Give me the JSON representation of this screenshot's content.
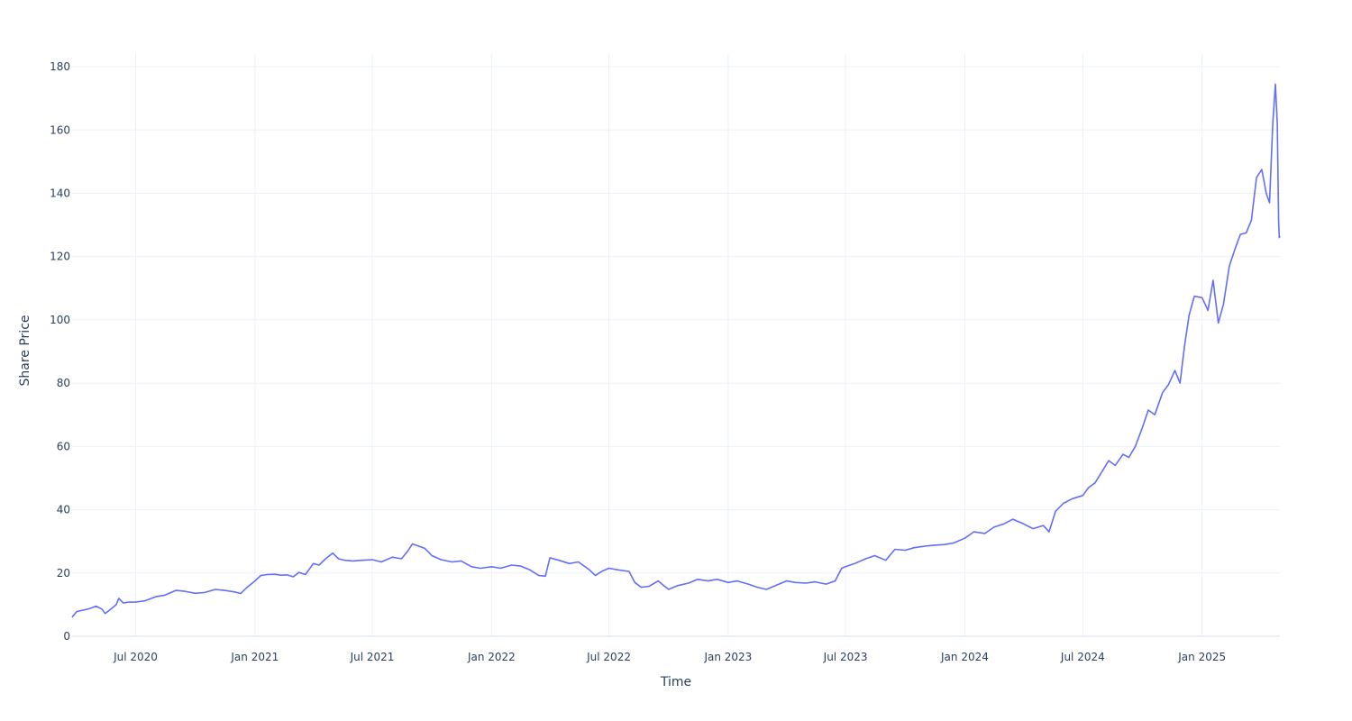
{
  "chart_data": {
    "type": "line",
    "title": "",
    "xlabel": "Time",
    "ylabel": "Share Price",
    "xlim": [
      "2020-03-25",
      "2025-05-01"
    ],
    "ylim": [
      0,
      184
    ],
    "y_ticks": [
      0,
      20,
      40,
      60,
      80,
      100,
      120,
      140,
      160,
      180
    ],
    "x_ticks": [
      {
        "date": "2020-07-01",
        "label": "Jul 2020"
      },
      {
        "date": "2021-01-01",
        "label": "Jan 2021"
      },
      {
        "date": "2021-07-01",
        "label": "Jul 2021"
      },
      {
        "date": "2022-01-01",
        "label": "Jan 2022"
      },
      {
        "date": "2022-07-01",
        "label": "Jul 2022"
      },
      {
        "date": "2023-01-01",
        "label": "Jan 2023"
      },
      {
        "date": "2023-07-01",
        "label": "Jul 2023"
      },
      {
        "date": "2024-01-01",
        "label": "Jan 2024"
      },
      {
        "date": "2024-07-01",
        "label": "Jul 2024"
      },
      {
        "date": "2025-01-01",
        "label": "Jan 2025"
      }
    ],
    "grid": true,
    "line_color": "#636efa",
    "series": [
      {
        "points": [
          [
            "2020-03-25",
            6.0
          ],
          [
            "2020-04-01",
            7.8
          ],
          [
            "2020-04-10",
            8.2
          ],
          [
            "2020-04-20",
            8.7
          ],
          [
            "2020-05-01",
            9.5
          ],
          [
            "2020-05-10",
            8.6
          ],
          [
            "2020-05-15",
            7.2
          ],
          [
            "2020-05-25",
            8.8
          ],
          [
            "2020-06-01",
            10.0
          ],
          [
            "2020-06-05",
            12.0
          ],
          [
            "2020-06-12",
            10.5
          ],
          [
            "2020-06-20",
            10.8
          ],
          [
            "2020-07-01",
            10.8
          ],
          [
            "2020-07-15",
            11.2
          ],
          [
            "2020-08-01",
            12.5
          ],
          [
            "2020-08-15",
            13.0
          ],
          [
            "2020-09-01",
            14.5
          ],
          [
            "2020-09-15",
            14.2
          ],
          [
            "2020-10-01",
            13.6
          ],
          [
            "2020-10-15",
            13.8
          ],
          [
            "2020-11-01",
            14.8
          ],
          [
            "2020-11-15",
            14.5
          ],
          [
            "2020-12-01",
            14.0
          ],
          [
            "2020-12-10",
            13.5
          ],
          [
            "2020-12-20",
            15.5
          ],
          [
            "2021-01-01",
            17.5
          ],
          [
            "2021-01-10",
            19.2
          ],
          [
            "2021-01-20",
            19.5
          ],
          [
            "2021-02-01",
            19.6
          ],
          [
            "2021-02-10",
            19.3
          ],
          [
            "2021-02-20",
            19.4
          ],
          [
            "2021-03-01",
            18.8
          ],
          [
            "2021-03-10",
            20.2
          ],
          [
            "2021-03-20",
            19.5
          ],
          [
            "2021-04-01",
            23.0
          ],
          [
            "2021-04-10",
            22.5
          ],
          [
            "2021-04-20",
            24.5
          ],
          [
            "2021-05-01",
            26.3
          ],
          [
            "2021-05-10",
            24.5
          ],
          [
            "2021-05-20",
            24.0
          ],
          [
            "2021-06-01",
            23.8
          ],
          [
            "2021-06-15",
            24.0
          ],
          [
            "2021-07-01",
            24.2
          ],
          [
            "2021-07-15",
            23.5
          ],
          [
            "2021-08-01",
            25.0
          ],
          [
            "2021-08-15",
            24.5
          ],
          [
            "2021-08-25",
            27.0
          ],
          [
            "2021-09-01",
            29.2
          ],
          [
            "2021-09-10",
            28.5
          ],
          [
            "2021-09-20",
            27.8
          ],
          [
            "2021-10-01",
            25.5
          ],
          [
            "2021-10-15",
            24.2
          ],
          [
            "2021-11-01",
            23.5
          ],
          [
            "2021-11-15",
            23.8
          ],
          [
            "2021-12-01",
            22.0
          ],
          [
            "2021-12-15",
            21.5
          ],
          [
            "2022-01-01",
            22.0
          ],
          [
            "2022-01-15",
            21.5
          ],
          [
            "2022-02-01",
            22.5
          ],
          [
            "2022-02-15",
            22.2
          ],
          [
            "2022-03-01",
            21.0
          ],
          [
            "2022-03-15",
            19.2
          ],
          [
            "2022-03-25",
            19.0
          ],
          [
            "2022-04-01",
            24.8
          ],
          [
            "2022-04-15",
            24.0
          ],
          [
            "2022-05-01",
            23.0
          ],
          [
            "2022-05-15",
            23.5
          ],
          [
            "2022-06-01",
            21.0
          ],
          [
            "2022-06-10",
            19.2
          ],
          [
            "2022-06-20",
            20.5
          ],
          [
            "2022-07-01",
            21.5
          ],
          [
            "2022-07-15",
            21.0
          ],
          [
            "2022-08-01",
            20.5
          ],
          [
            "2022-08-10",
            17.0
          ],
          [
            "2022-08-20",
            15.5
          ],
          [
            "2022-09-01",
            15.8
          ],
          [
            "2022-09-15",
            17.5
          ],
          [
            "2022-10-01",
            14.8
          ],
          [
            "2022-10-15",
            16.0
          ],
          [
            "2022-11-01",
            16.8
          ],
          [
            "2022-11-15",
            18.0
          ],
          [
            "2022-12-01",
            17.5
          ],
          [
            "2022-12-15",
            18.0
          ],
          [
            "2023-01-01",
            17.0
          ],
          [
            "2023-01-15",
            17.5
          ],
          [
            "2023-02-01",
            16.5
          ],
          [
            "2023-02-15",
            15.5
          ],
          [
            "2023-03-01",
            14.8
          ],
          [
            "2023-03-15",
            16.0
          ],
          [
            "2023-04-01",
            17.5
          ],
          [
            "2023-04-15",
            17.0
          ],
          [
            "2023-05-01",
            16.8
          ],
          [
            "2023-05-15",
            17.2
          ],
          [
            "2023-06-01",
            16.5
          ],
          [
            "2023-06-15",
            17.5
          ],
          [
            "2023-06-25",
            21.5
          ],
          [
            "2023-07-01",
            22.0
          ],
          [
            "2023-07-15",
            23.0
          ],
          [
            "2023-08-01",
            24.5
          ],
          [
            "2023-08-15",
            25.5
          ],
          [
            "2023-09-01",
            24.0
          ],
          [
            "2023-09-15",
            27.5
          ],
          [
            "2023-10-01",
            27.2
          ],
          [
            "2023-10-15",
            28.0
          ],
          [
            "2023-11-01",
            28.5
          ],
          [
            "2023-11-15",
            28.8
          ],
          [
            "2023-12-01",
            29.0
          ],
          [
            "2023-12-15",
            29.5
          ],
          [
            "2024-01-01",
            31.0
          ],
          [
            "2024-01-15",
            33.0
          ],
          [
            "2024-02-01",
            32.5
          ],
          [
            "2024-02-15",
            34.5
          ],
          [
            "2024-03-01",
            35.5
          ],
          [
            "2024-03-15",
            37.0
          ],
          [
            "2024-04-01",
            35.5
          ],
          [
            "2024-04-15",
            34.0
          ],
          [
            "2024-05-01",
            35.0
          ],
          [
            "2024-05-10",
            33.0
          ],
          [
            "2024-05-20",
            39.5
          ],
          [
            "2024-06-01",
            42.0
          ],
          [
            "2024-06-15",
            43.5
          ],
          [
            "2024-07-01",
            44.5
          ],
          [
            "2024-07-10",
            47.0
          ],
          [
            "2024-07-20",
            48.5
          ],
          [
            "2024-08-01",
            52.5
          ],
          [
            "2024-08-10",
            55.5
          ],
          [
            "2024-08-20",
            54.0
          ],
          [
            "2024-09-01",
            57.5
          ],
          [
            "2024-09-10",
            56.5
          ],
          [
            "2024-09-20",
            60.0
          ],
          [
            "2024-10-01",
            66.0
          ],
          [
            "2024-10-10",
            71.5
          ],
          [
            "2024-10-20",
            70.0
          ],
          [
            "2024-11-01",
            77.0
          ],
          [
            "2024-11-10",
            79.5
          ],
          [
            "2024-11-20",
            84.0
          ],
          [
            "2024-11-28",
            80.0
          ],
          [
            "2024-12-05",
            92.0
          ],
          [
            "2024-12-12",
            101.5
          ],
          [
            "2024-12-20",
            107.5
          ],
          [
            "2025-01-01",
            107.0
          ],
          [
            "2025-01-10",
            103.0
          ],
          [
            "2025-01-18",
            112.5
          ],
          [
            "2025-01-26",
            99.0
          ],
          [
            "2025-02-03",
            105.0
          ],
          [
            "2025-02-12",
            117.0
          ],
          [
            "2025-02-20",
            122.0
          ],
          [
            "2025-03-01",
            127.0
          ],
          [
            "2025-03-10",
            127.5
          ],
          [
            "2025-03-18",
            131.5
          ],
          [
            "2025-03-26",
            145.0
          ],
          [
            "2025-04-03",
            147.5
          ],
          [
            "2025-04-10",
            140.0
          ],
          [
            "2025-04-15",
            137.0
          ],
          [
            "2025-04-20",
            162.0
          ],
          [
            "2025-04-24",
            174.5
          ],
          [
            "2025-04-27",
            162.0
          ],
          [
            "2025-04-29",
            131.0
          ],
          [
            "2025-04-30",
            126.0
          ],
          [
            "2025-05-01",
            126.5
          ]
        ]
      }
    ]
  }
}
